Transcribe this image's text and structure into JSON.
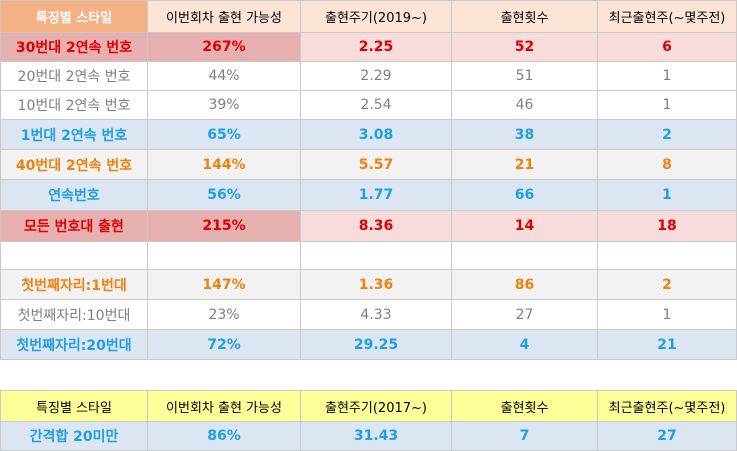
{
  "table1": {
    "headers": [
      "특징별 스타일",
      "이번회차 출현 가능성",
      "출현주기(2019~)",
      "출현횟수",
      "최근출현주(~몇주전)"
    ],
    "rows": [
      [
        "30번대 2연속 번호",
        "267%",
        "2.25",
        "52",
        "6"
      ],
      [
        "20번대 2연속 번호",
        "44%",
        "2.29",
        "51",
        "1"
      ],
      [
        "10번대 2연속 번호",
        "39%",
        "2.54",
        "46",
        "1"
      ],
      [
        "1번대 2연속 번호",
        "65%",
        "3.08",
        "38",
        "2"
      ],
      [
        "40번대 2연속 번호",
        "144%",
        "5.57",
        "21",
        "8"
      ],
      [
        "연속번호",
        "56%",
        "1.77",
        "66",
        "1"
      ],
      [
        "모든 번호대 출현",
        "215%",
        "8.36",
        "14",
        "18"
      ],
      [
        "",
        "",
        "",
        "",
        ""
      ],
      [
        "첫번째자리:1번대",
        "147%",
        "1.36",
        "86",
        "2"
      ],
      [
        "첫번째자리:10번대",
        "23%",
        "4.33",
        "27",
        "1"
      ],
      [
        "첫번째자리:20번대",
        "72%",
        "29.25",
        "4",
        "21"
      ]
    ]
  },
  "table2": {
    "headers": [
      "특징별 스타일",
      "이번회차 출현 가능성",
      "출현주기(2017~)",
      "출현횟수",
      "최근출현주(~몇주전)"
    ],
    "rows": [
      [
        "간격합 20미만",
        "86%",
        "31.43",
        "7",
        "27"
      ]
    ]
  },
  "colors": {
    "red": "#e00000",
    "blue": "#1f9fe0",
    "orange": "#f08010",
    "gray": "#7f7f7f",
    "header1_first": "#f4b183",
    "header1_rest": "#fce4d6",
    "header2": "#ffff99"
  }
}
